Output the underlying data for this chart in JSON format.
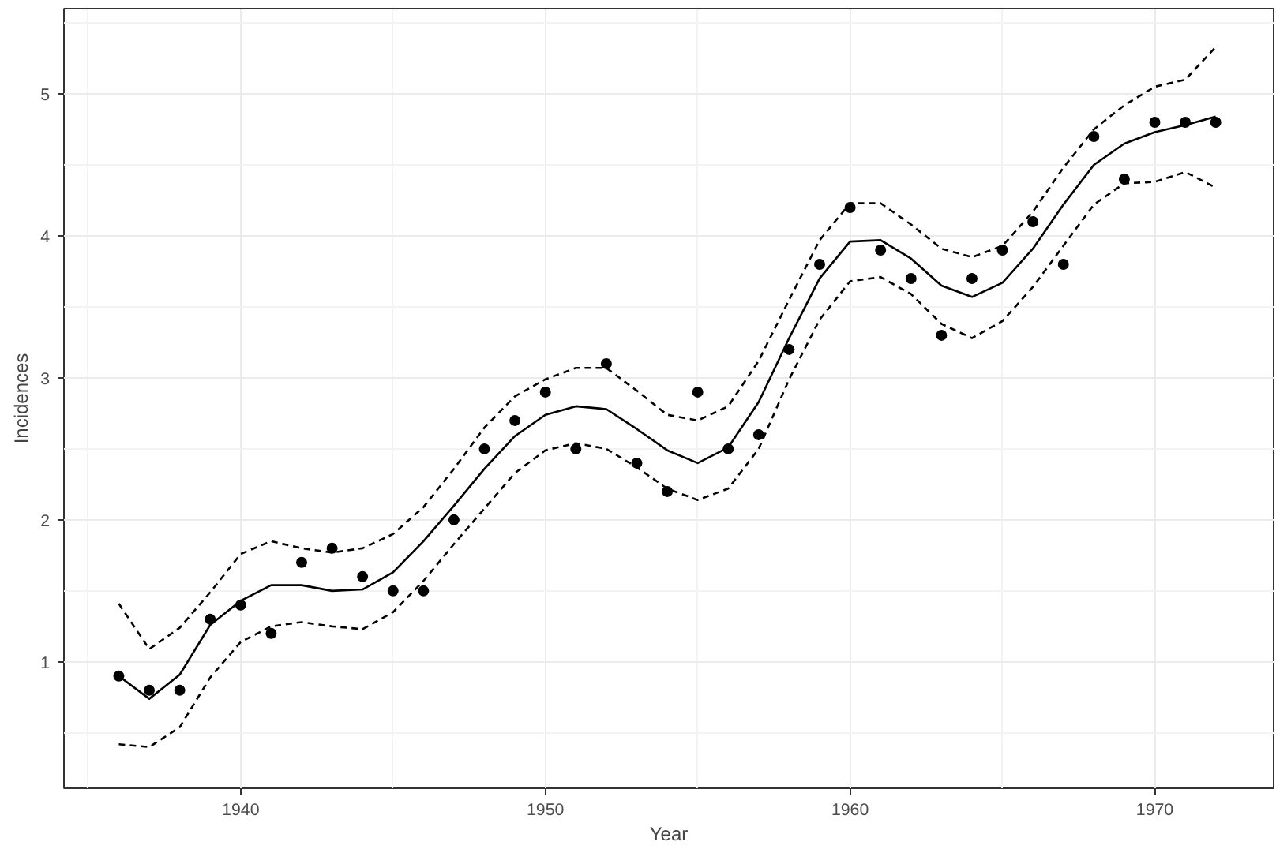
{
  "chart_data": {
    "type": "scatter",
    "xlabel": "Year",
    "ylabel": "Incidences",
    "x": [
      1936,
      1937,
      1938,
      1939,
      1940,
      1941,
      1942,
      1943,
      1944,
      1945,
      1946,
      1947,
      1948,
      1949,
      1950,
      1951,
      1952,
      1953,
      1954,
      1955,
      1956,
      1957,
      1958,
      1959,
      1960,
      1961,
      1962,
      1963,
      1964,
      1965,
      1966,
      1967,
      1968,
      1969,
      1970,
      1971,
      1972
    ],
    "series": [
      {
        "marker": "circle",
        "color": "#000000",
        "values": [
          0.9,
          0.8,
          0.8,
          1.3,
          1.4,
          1.2,
          1.7,
          1.8,
          1.6,
          1.5,
          1.5,
          2.0,
          2.5,
          2.7,
          2.9,
          2.5,
          3.1,
          2.4,
          2.2,
          2.9,
          2.5,
          2.6,
          3.2,
          3.8,
          4.2,
          3.9,
          3.7,
          3.3,
          3.7,
          3.9,
          4.1,
          3.8,
          4.7,
          4.4,
          4.8,
          4.8,
          4.8
        ]
      },
      {
        "type": "line",
        "line_style": "solid",
        "color": "#000000",
        "values": [
          0.9,
          0.74,
          0.91,
          1.26,
          1.43,
          1.54,
          1.54,
          1.5,
          1.51,
          1.63,
          1.85,
          2.1,
          2.36,
          2.59,
          2.74,
          2.8,
          2.78,
          2.64,
          2.49,
          2.4,
          2.51,
          2.83,
          3.28,
          3.7,
          3.96,
          3.97,
          3.84,
          3.65,
          3.57,
          3.67,
          3.91,
          4.22,
          4.5,
          4.65,
          4.73,
          4.78,
          4.84
        ]
      },
      {
        "type": "line",
        "line_style": "dashed",
        "color": "#000000",
        "values": [
          1.41,
          1.09,
          1.24,
          1.49,
          1.76,
          1.85,
          1.8,
          1.77,
          1.8,
          1.9,
          2.09,
          2.36,
          2.65,
          2.87,
          2.99,
          3.07,
          3.07,
          2.91,
          2.74,
          2.7,
          2.8,
          3.12,
          3.55,
          3.97,
          4.23,
          4.23,
          4.08,
          3.91,
          3.85,
          3.93,
          4.17,
          4.48,
          4.75,
          4.92,
          5.05,
          5.1,
          5.33
        ]
      },
      {
        "type": "line",
        "line_style": "dashed",
        "color": "#000000",
        "values": [
          0.42,
          0.4,
          0.54,
          0.89,
          1.14,
          1.25,
          1.28,
          1.25,
          1.23,
          1.35,
          1.57,
          1.83,
          2.08,
          2.33,
          2.49,
          2.54,
          2.5,
          2.37,
          2.22,
          2.14,
          2.22,
          2.5,
          2.99,
          3.41,
          3.68,
          3.71,
          3.59,
          3.38,
          3.28,
          3.4,
          3.64,
          3.93,
          4.22,
          4.37,
          4.38,
          4.45,
          4.34
        ]
      }
    ],
    "xlim": [
      1934.2,
      1973.9
    ],
    "ylim": [
      0.11,
      5.6
    ],
    "xticks": [
      1940,
      1950,
      1960,
      1970
    ],
    "yticks": [
      1,
      2,
      3,
      4,
      5
    ],
    "grid": true
  }
}
